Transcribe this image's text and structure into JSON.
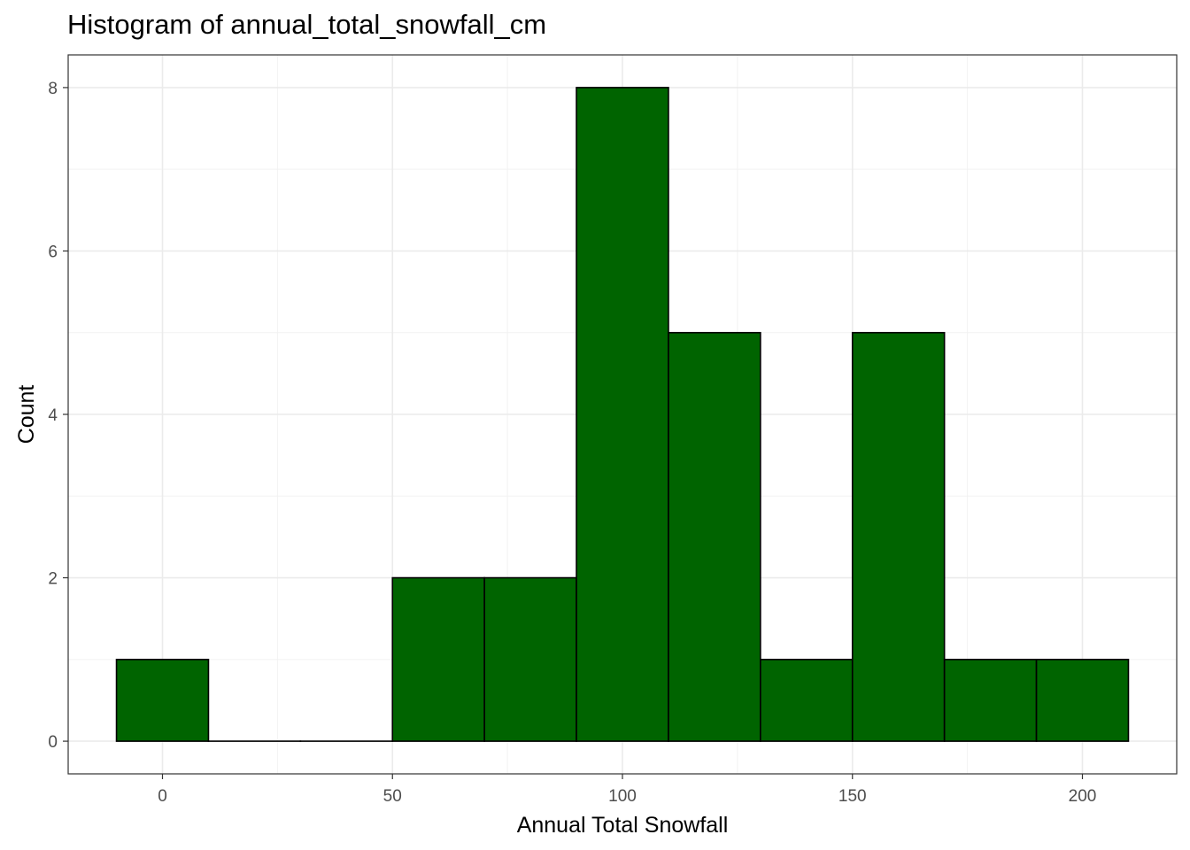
{
  "chart_data": {
    "type": "bar",
    "title": "Histogram of annual_total_snowfall_cm",
    "xlabel": "Annual Total Snowfall",
    "ylabel": "Count",
    "bins": [
      {
        "x0": -10,
        "x1": 10,
        "count": 1
      },
      {
        "x0": 10,
        "x1": 30,
        "count": 0
      },
      {
        "x0": 30,
        "x1": 50,
        "count": 0
      },
      {
        "x0": 50,
        "x1": 70,
        "count": 2
      },
      {
        "x0": 70,
        "x1": 90,
        "count": 2
      },
      {
        "x0": 90,
        "x1": 110,
        "count": 8
      },
      {
        "x0": 110,
        "x1": 130,
        "count": 5
      },
      {
        "x0": 130,
        "x1": 150,
        "count": 1
      },
      {
        "x0": 150,
        "x1": 170,
        "count": 5
      },
      {
        "x0": 170,
        "x1": 190,
        "count": 1
      },
      {
        "x0": 190,
        "x1": 210,
        "count": 1
      }
    ],
    "xlim": [
      -20.5,
      220.5
    ],
    "ylim": [
      -0.4,
      8.4
    ],
    "x_ticks": [
      0,
      50,
      100,
      150,
      200
    ],
    "x_minor_ticks": [
      25,
      75,
      125,
      175
    ],
    "y_ticks": [
      0,
      2,
      4,
      6,
      8
    ],
    "y_minor_ticks": [
      1,
      3,
      5,
      7
    ],
    "x_tick_labels": [
      "0",
      "50",
      "100",
      "150",
      "200"
    ],
    "y_tick_labels": [
      "0",
      "2",
      "4",
      "6",
      "8"
    ],
    "grid": true,
    "bar_color": "#006400",
    "bar_edge_color": "#000000"
  }
}
